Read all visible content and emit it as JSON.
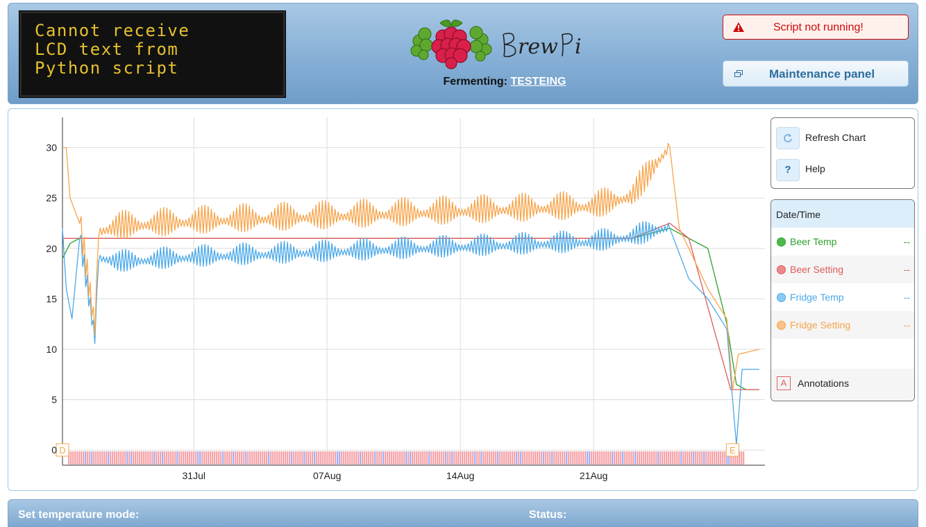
{
  "lcd": {
    "lines": [
      "Cannot receive",
      "LCD text from",
      "Python script"
    ]
  },
  "header": {
    "logo_text": "BrewPi",
    "beer_label": "Fermenting:",
    "beer_name": "TESTEING",
    "script_status": "Script not running!",
    "maintenance_label": "Maintenance panel"
  },
  "controls": {
    "refresh_label": "Refresh Chart",
    "help_label": "Help",
    "help_glyph": "?"
  },
  "legend": {
    "header": "Date/Time",
    "items": [
      {
        "name": "Beer Temp",
        "value": "--",
        "color": "#2ca02c",
        "dot": "#4cbb4c"
      },
      {
        "name": "Beer Setting",
        "value": "--",
        "color": "#e05a5a",
        "dot": "#f0898c"
      },
      {
        "name": "Fridge Temp",
        "value": "--",
        "color": "#4aa8e8",
        "dot": "#8ccaf3"
      },
      {
        "name": "Fridge Setting",
        "value": "--",
        "color": "#f7a44a",
        "dot": "#f9c28d"
      }
    ],
    "annotations_glyph": "A",
    "annotations_label": "Annotations"
  },
  "bottom": {
    "mode_title": "Set temperature mode:",
    "status_title": "Status:"
  },
  "chart_data": {
    "type": "line",
    "x_ticks": [
      "31Jul",
      "07Aug",
      "14Aug",
      "21Aug"
    ],
    "y_ticks": [
      0,
      5,
      10,
      15,
      20,
      25,
      30
    ],
    "ylim": [
      -1.5,
      33
    ],
    "xlim_days": [
      -6.9,
      30
    ],
    "grid": true,
    "series": [
      {
        "name": "Beer Temp",
        "color": "#2ca02c",
        "points": [
          [
            -6.9,
            19
          ],
          [
            -6.5,
            20.5
          ],
          [
            -6,
            21
          ],
          [
            -4,
            21
          ],
          [
            0,
            21
          ],
          [
            7,
            21
          ],
          [
            14,
            21
          ],
          [
            21,
            21
          ],
          [
            23,
            21
          ],
          [
            25,
            22
          ],
          [
            26,
            21
          ],
          [
            27,
            20
          ],
          [
            28,
            12.5
          ],
          [
            28.5,
            6.5
          ],
          [
            29,
            6
          ],
          [
            29.7,
            6
          ]
        ]
      },
      {
        "name": "Beer Setting",
        "color": "#e05a5a",
        "points": [
          [
            -6.9,
            21
          ],
          [
            23,
            21
          ],
          [
            25,
            22.5
          ],
          [
            26,
            21
          ],
          [
            28.2,
            6
          ],
          [
            29.7,
            6
          ]
        ]
      },
      {
        "name": "Fridge Temp",
        "color": "#4aa8e8",
        "points": [
          [
            -6.9,
            22
          ],
          [
            -6.7,
            16
          ],
          [
            -6.4,
            13
          ],
          [
            -6,
            21
          ],
          [
            -5.2,
            11
          ],
          [
            -5,
            19
          ],
          [
            -4,
            18.5
          ],
          [
            0,
            19
          ],
          [
            7,
            19.5
          ],
          [
            14,
            20
          ],
          [
            21,
            20.5
          ],
          [
            23,
            21
          ],
          [
            25,
            22
          ],
          [
            26,
            17
          ],
          [
            27,
            15
          ],
          [
            28,
            12
          ],
          [
            28.3,
            5
          ],
          [
            28.5,
            0.5
          ],
          [
            28.8,
            8
          ],
          [
            29.7,
            8
          ]
        ]
      },
      {
        "name": "Fridge Setting",
        "color": "#f7a44a",
        "points": [
          [
            -6.9,
            30
          ],
          [
            -6.7,
            30
          ],
          [
            -6.5,
            25
          ],
          [
            -6,
            22.5
          ],
          [
            -5.2,
            12
          ],
          [
            -5,
            21.5
          ],
          [
            -4,
            22
          ],
          [
            0,
            22.5
          ],
          [
            7,
            23
          ],
          [
            14,
            23.5
          ],
          [
            21,
            24
          ],
          [
            23,
            25
          ],
          [
            25,
            30
          ],
          [
            25.5,
            22
          ],
          [
            26,
            20
          ],
          [
            27,
            16
          ],
          [
            28,
            13
          ],
          [
            28.3,
            6
          ],
          [
            28.6,
            9.5
          ],
          [
            29.7,
            10
          ]
        ]
      }
    ],
    "annotations": [
      {
        "label": "D",
        "day": -6.9
      },
      {
        "label": "E",
        "day": 28.3
      }
    ]
  },
  "icons": {
    "warning": "warning-icon",
    "maintenance": "window-icon",
    "refresh": "refresh-icon",
    "help": "help-icon"
  }
}
